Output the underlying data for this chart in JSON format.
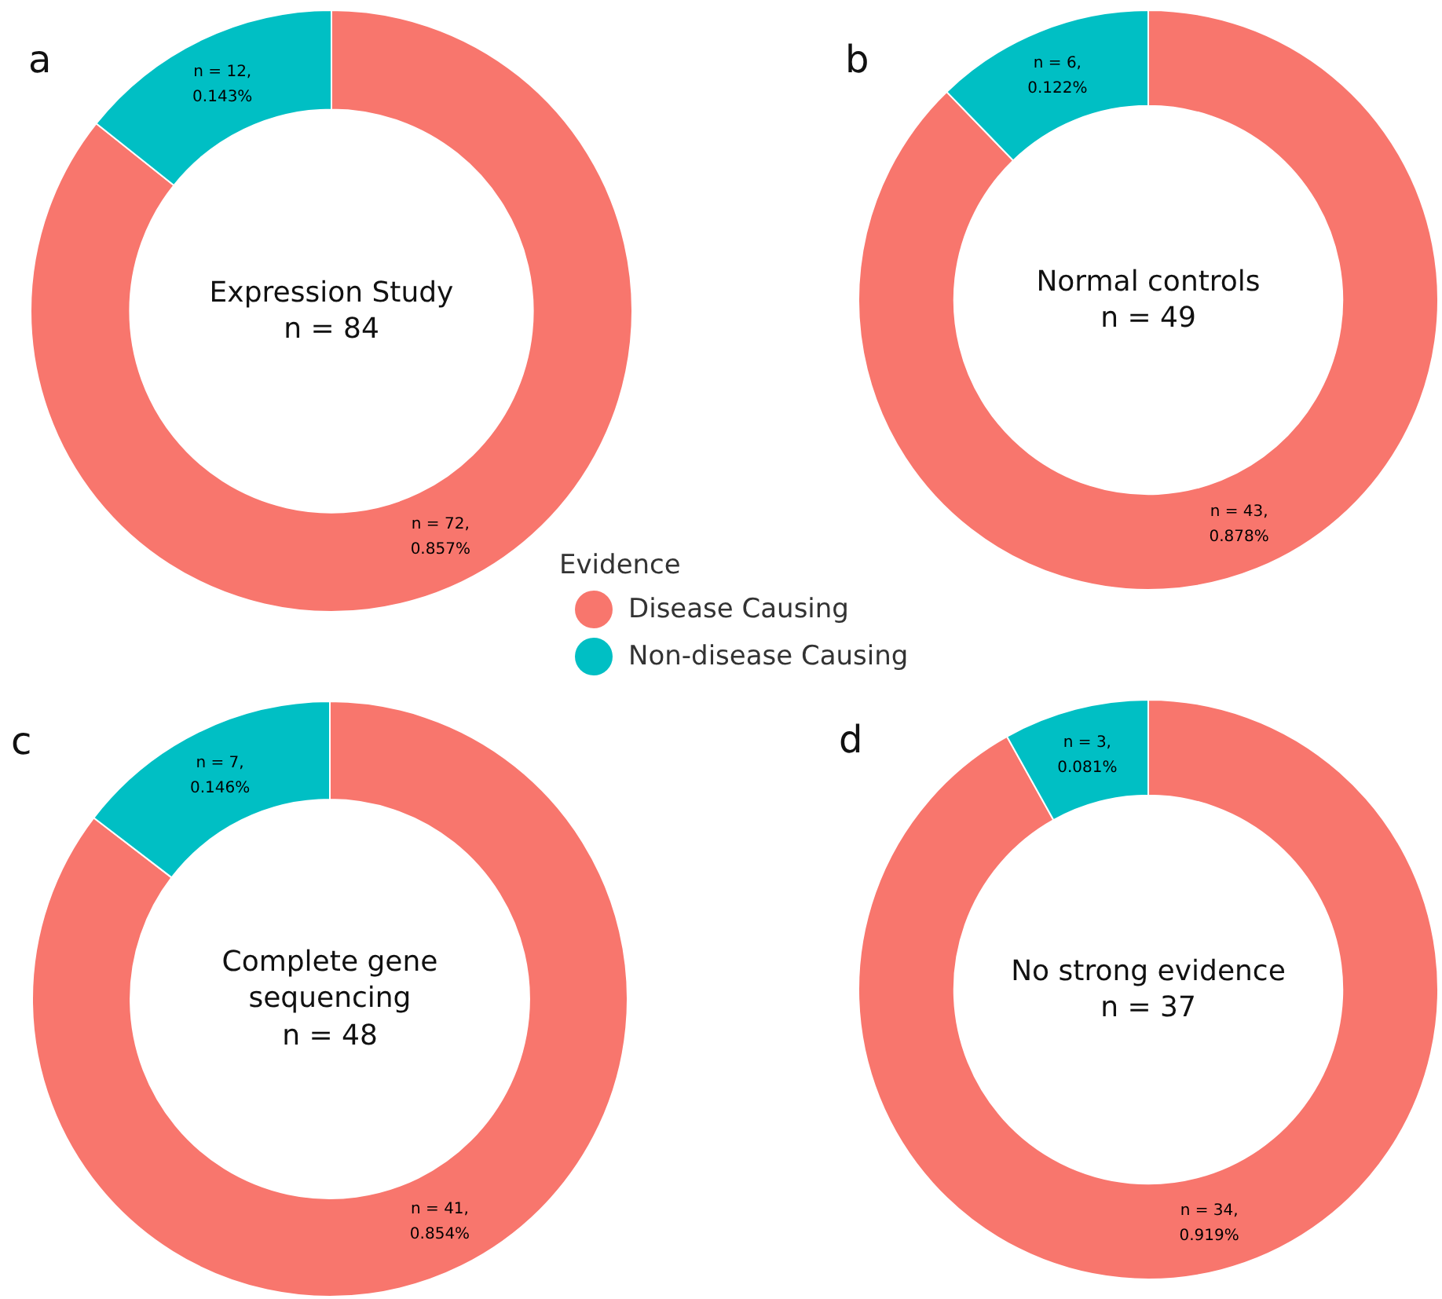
{
  "chart_data": [
    {
      "type": "donut",
      "title": "Expression Study",
      "subtitle": "n = 84",
      "annotations": [
        "a"
      ],
      "categories": [
        "Disease Causing",
        "Non-disease Causing"
      ],
      "values": [
        72,
        12
      ],
      "colors": [
        "#f8766d",
        "#00bfc4"
      ],
      "value_labels": [
        "n = 72,\n0.857%",
        "n = 12,\n0.143%"
      ],
      "legend_title": "Evidence",
      "legend": "bottom right"
    },
    {
      "type": "donut",
      "title": "Normal controls",
      "subtitle": "n = 49",
      "annotations": [
        "b"
      ],
      "categories": [
        null,
        null
      ],
      "values": [
        43,
        6
      ],
      "colors": [
        "#f8766d",
        "#00bfc4"
      ],
      "value_labels": [
        "n = 43,\n0.878%",
        "n = 6,\n0.122%"
      ]
    },
    {
      "type": "donut",
      "title": "Complete gene\nsequencing",
      "subtitle": "n = 48",
      "annotations": [
        "c"
      ],
      "categories": [
        null,
        null
      ],
      "values": [
        41,
        7
      ],
      "colors": [
        "#f8766d",
        "#00bfc4"
      ],
      "value_labels": [
        "n = 41,\n0.854%",
        "n = 7,\n0.146%"
      ]
    },
    {
      "type": "donut",
      "title": "No strong evidence",
      "subtitle": "n = 37",
      "annotations": [
        "d"
      ],
      "categories": [
        null,
        null
      ],
      "values": [
        34,
        3
      ],
      "colors": [
        "#f8766d",
        "#00bfc4"
      ],
      "value_labels": [
        "n = 34,\n0.919%",
        "n = 3,\n0.081%"
      ]
    }
  ]
}
